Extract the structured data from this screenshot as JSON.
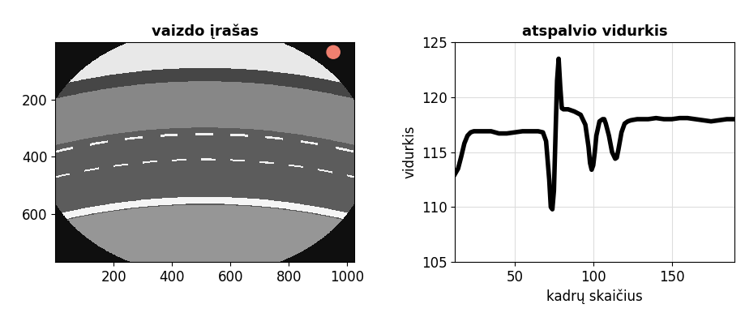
{
  "chart_data": [
    {
      "type": "image",
      "title": "vaizdo įrašas",
      "xlim": [
        0,
        1024
      ],
      "ylim": [
        768,
        0
      ],
      "xticks": [
        200,
        400,
        600,
        800,
        1000
      ],
      "yticks": [
        200,
        400,
        600
      ],
      "grid": false
    },
    {
      "type": "line",
      "title": "atspalvio vidurkis",
      "xlabel": "kadrų skaičius",
      "ylabel": "vidurkis",
      "x": [
        12,
        14,
        16,
        18,
        20,
        22,
        24,
        26,
        30,
        35,
        40,
        45,
        50,
        55,
        60,
        65,
        68,
        70,
        72,
        73,
        74,
        75,
        76,
        77,
        78,
        79,
        80,
        81,
        84,
        88,
        92,
        95,
        97,
        98,
        99,
        100,
        101,
        102,
        104,
        106,
        107,
        108,
        110,
        112,
        114,
        115,
        116,
        118,
        120,
        122,
        124,
        128,
        135,
        140,
        145,
        150,
        155,
        160,
        165,
        170,
        175,
        180,
        185,
        190
      ],
      "values": [
        113.0,
        113.5,
        114.6,
        115.8,
        116.5,
        116.8,
        116.9,
        116.9,
        116.9,
        116.9,
        116.7,
        116.7,
        116.8,
        116.9,
        116.9,
        116.9,
        116.8,
        116.0,
        112.5,
        110.0,
        109.8,
        111.5,
        116.5,
        121.5,
        123.5,
        121.0,
        119.0,
        118.9,
        118.9,
        118.7,
        118.4,
        117.5,
        115.5,
        114.0,
        113.4,
        113.8,
        115.0,
        116.5,
        117.8,
        118.0,
        118.0,
        117.6,
        116.5,
        115.0,
        114.4,
        114.5,
        115.2,
        116.8,
        117.6,
        117.8,
        117.9,
        118.0,
        118.0,
        118.1,
        118.0,
        118.0,
        118.1,
        118.1,
        118.0,
        117.9,
        117.8,
        117.9,
        118.0,
        118.0
      ],
      "color": "#000000",
      "xlim": [
        12,
        190
      ],
      "ylim": [
        105,
        125
      ],
      "xticks": [
        50,
        100,
        150
      ],
      "yticks": [
        105,
        110,
        115,
        120,
        125
      ],
      "grid": true
    }
  ]
}
